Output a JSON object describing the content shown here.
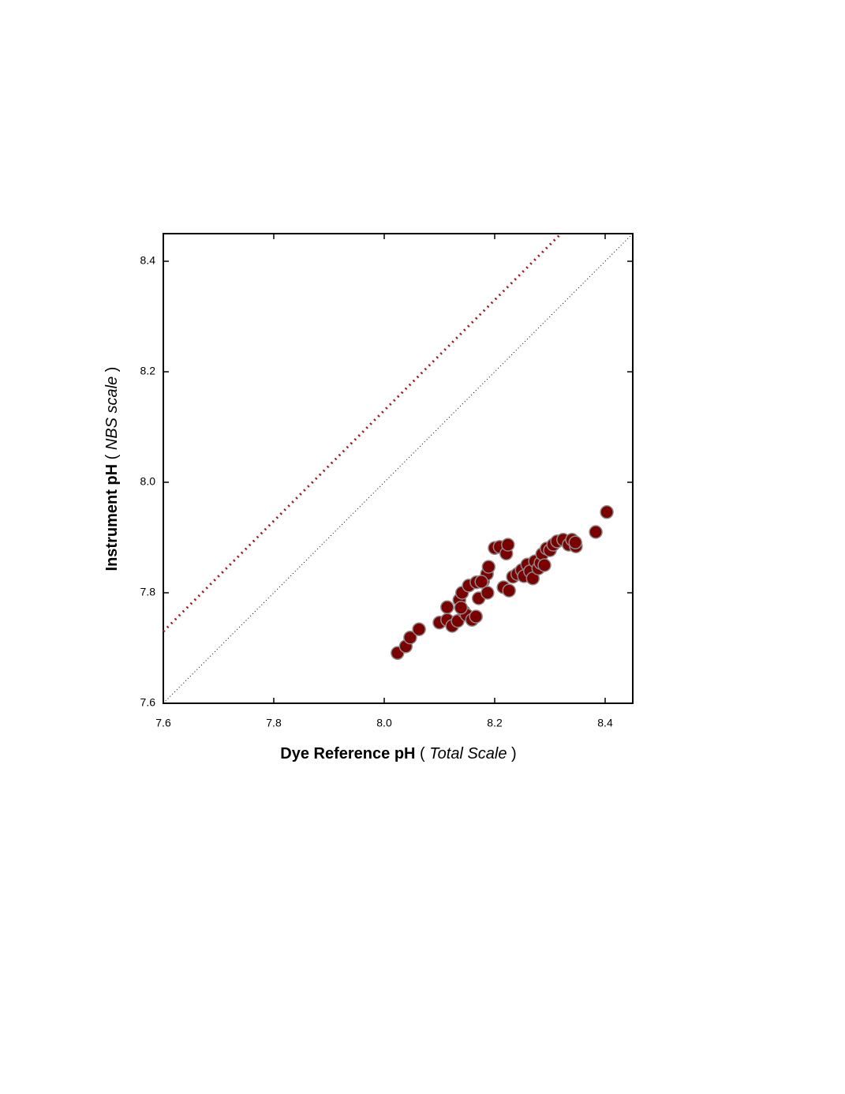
{
  "chart_data": {
    "type": "scatter",
    "x_label": [
      "Dye Reference pH",
      " ( ",
      "Total Scale",
      " )"
    ],
    "y_label": [
      "Instrument pH",
      " ( ",
      "NBS scale",
      " )"
    ],
    "xlim": [
      7.6,
      8.45
    ],
    "ylim": [
      7.6,
      8.45
    ],
    "xticks": [
      {
        "value": 7.6,
        "label": "7.6"
      },
      {
        "value": 7.8,
        "label": "7.8"
      },
      {
        "value": 8.0,
        "label": "8.0"
      },
      {
        "value": 8.2,
        "label": "8.2"
      },
      {
        "value": 8.4,
        "label": "8.4"
      }
    ],
    "yticks": [
      {
        "value": 7.6,
        "label": "7.6"
      },
      {
        "value": 7.8,
        "label": "7.8"
      },
      {
        "value": 8.0,
        "label": "8.0"
      },
      {
        "value": 8.2,
        "label": "8.2"
      },
      {
        "value": 8.4,
        "label": "8.4"
      }
    ],
    "grid": false,
    "reference_lines": [
      {
        "color": "#000000",
        "x": [
          7.6,
          8.45
        ],
        "values": [
          7.6,
          8.45
        ]
      },
      {
        "color": "#b01010",
        "x": [
          7.6,
          8.32
        ],
        "values": [
          7.73,
          8.45
        ]
      }
    ],
    "series": [
      {
        "color": "#7b0000",
        "x": [
          8.024,
          8.039,
          8.047,
          8.063,
          8.1,
          8.114,
          8.114,
          8.123,
          8.133,
          8.136,
          8.141,
          8.144,
          8.149,
          8.153,
          8.159,
          8.166,
          8.167,
          8.171,
          8.179,
          8.186,
          8.189,
          8.187,
          8.2,
          8.209,
          8.216,
          8.221,
          8.224,
          8.226,
          8.233,
          8.241,
          8.249,
          8.253,
          8.259,
          8.264,
          8.269,
          8.273,
          8.279,
          8.283,
          8.286,
          8.29,
          8.294,
          8.3,
          8.306,
          8.313,
          8.324,
          8.334,
          8.34,
          8.347,
          8.346,
          8.383,
          8.403,
          8.176,
          8.139
        ],
        "values": [
          7.691,
          7.703,
          7.719,
          7.734,
          7.746,
          7.774,
          7.751,
          7.74,
          7.749,
          7.787,
          7.8,
          7.766,
          7.76,
          7.813,
          7.751,
          7.757,
          7.819,
          7.79,
          7.821,
          7.834,
          7.847,
          7.8,
          7.881,
          7.883,
          7.81,
          7.871,
          7.887,
          7.804,
          7.829,
          7.834,
          7.841,
          7.83,
          7.851,
          7.839,
          7.826,
          7.857,
          7.844,
          7.854,
          7.87,
          7.85,
          7.88,
          7.877,
          7.887,
          7.893,
          7.896,
          7.887,
          7.896,
          7.884,
          7.891,
          7.91,
          7.946,
          7.82,
          7.773
        ]
      }
    ]
  }
}
